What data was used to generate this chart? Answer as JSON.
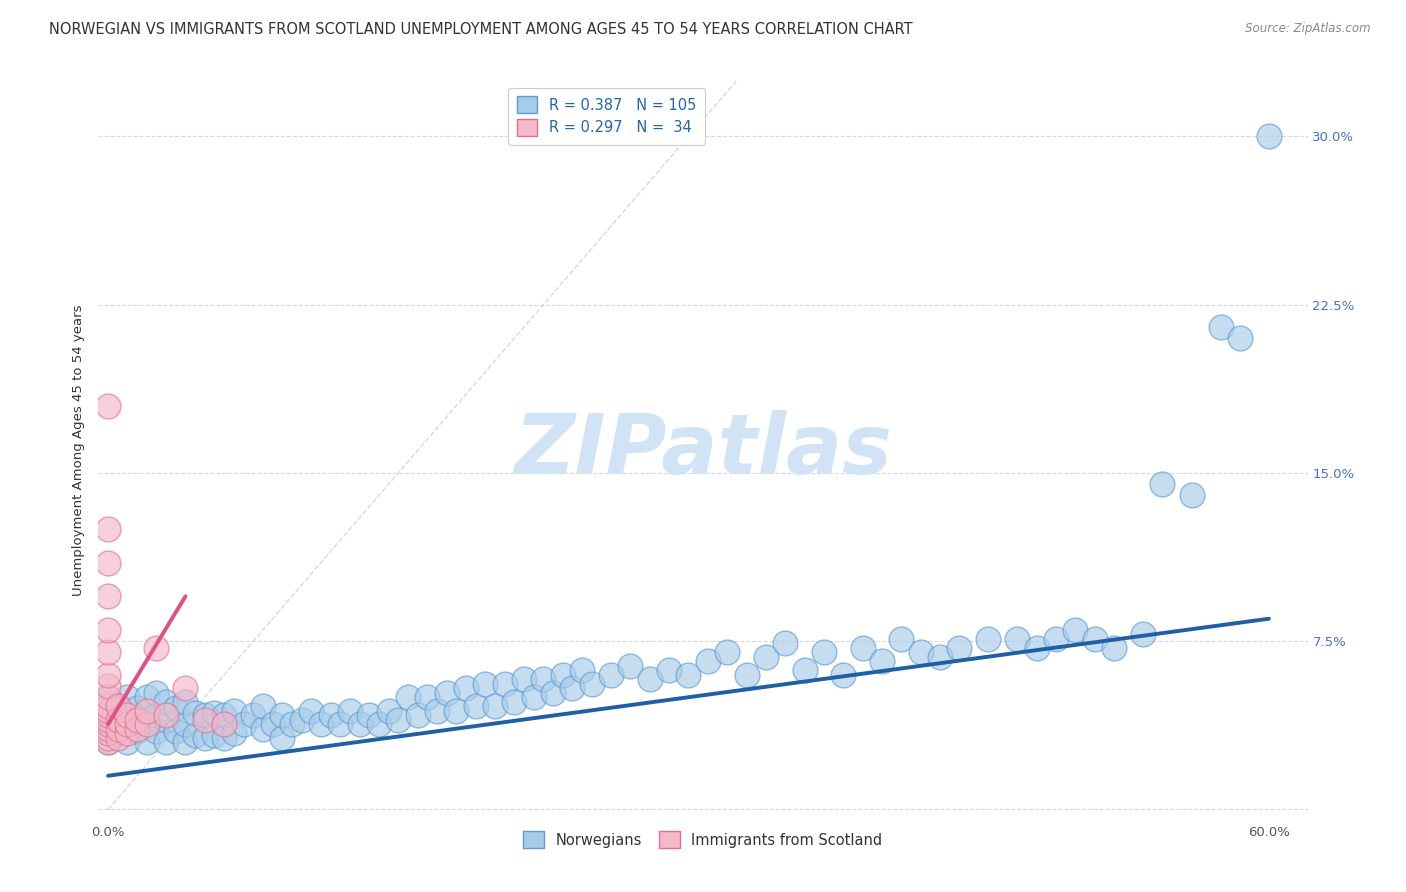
{
  "title": "NORWEGIAN VS IMMIGRANTS FROM SCOTLAND UNEMPLOYMENT AMONG AGES 45 TO 54 YEARS CORRELATION CHART",
  "source": "Source: ZipAtlas.com",
  "ylabel": "Unemployment Among Ages 45 to 54 years",
  "xlim": [
    -0.005,
    0.62
  ],
  "ylim": [
    -0.005,
    0.325
  ],
  "xticks": [
    0.0,
    0.1,
    0.2,
    0.3,
    0.4,
    0.5,
    0.6
  ],
  "yticks": [
    0.0,
    0.075,
    0.15,
    0.225,
    0.3
  ],
  "right_ytick_labels": [
    "",
    "7.5%",
    "15.0%",
    "22.5%",
    "30.0%"
  ],
  "xtick_labels": [
    "0.0%",
    "",
    "",
    "",
    "",
    "",
    "60.0%"
  ],
  "legend_label1": "Norwegians",
  "legend_label2": "Immigrants from Scotland",
  "blue_color": "#a8cce8",
  "pink_color": "#f4b8c8",
  "blue_edge_color": "#5b9bd5",
  "pink_edge_color": "#e07090",
  "blue_line_color": "#1f5fa6",
  "pink_line_color": "#e05080",
  "diag_line_color": "#c0c0c0",
  "watermark_color": "#d0e4f5",
  "grid_color": "#d0d0d0",
  "background_color": "#ffffff",
  "title_color": "#333333",
  "source_color": "#888888",
  "ylabel_color": "#333333",
  "tick_color": "#4472c4",
  "legend_text_color": "#2166ac",
  "bottom_legend_color": "#333333",
  "title_fontsize": 10.5,
  "axis_label_fontsize": 9.5,
  "tick_fontsize": 9.5,
  "legend_fontsize": 10.5,
  "watermark_fontsize": 60,
  "blue_dots_x": [
    0.0,
    0.0,
    0.0,
    0.005,
    0.005,
    0.01,
    0.01,
    0.01,
    0.015,
    0.015,
    0.02,
    0.02,
    0.02,
    0.025,
    0.025,
    0.025,
    0.03,
    0.03,
    0.03,
    0.035,
    0.035,
    0.04,
    0.04,
    0.04,
    0.045,
    0.045,
    0.05,
    0.05,
    0.055,
    0.055,
    0.06,
    0.06,
    0.065,
    0.065,
    0.07,
    0.075,
    0.08,
    0.08,
    0.085,
    0.09,
    0.09,
    0.095,
    0.1,
    0.105,
    0.11,
    0.115,
    0.12,
    0.125,
    0.13,
    0.135,
    0.14,
    0.145,
    0.15,
    0.155,
    0.16,
    0.165,
    0.17,
    0.175,
    0.18,
    0.185,
    0.19,
    0.195,
    0.2,
    0.205,
    0.21,
    0.215,
    0.22,
    0.225,
    0.23,
    0.235,
    0.24,
    0.245,
    0.25,
    0.26,
    0.27,
    0.28,
    0.29,
    0.3,
    0.31,
    0.32,
    0.33,
    0.34,
    0.35,
    0.36,
    0.37,
    0.38,
    0.39,
    0.4,
    0.41,
    0.42,
    0.43,
    0.44,
    0.455,
    0.47,
    0.48,
    0.49,
    0.5,
    0.51,
    0.52,
    0.535,
    0.545,
    0.56,
    0.575,
    0.585,
    0.6
  ],
  "blue_dots_y": [
    0.03,
    0.04,
    0.05,
    0.035,
    0.045,
    0.03,
    0.04,
    0.05,
    0.035,
    0.045,
    0.03,
    0.04,
    0.05,
    0.035,
    0.042,
    0.052,
    0.03,
    0.04,
    0.048,
    0.035,
    0.045,
    0.03,
    0.038,
    0.048,
    0.033,
    0.043,
    0.032,
    0.042,
    0.033,
    0.043,
    0.032,
    0.042,
    0.034,
    0.044,
    0.038,
    0.042,
    0.036,
    0.046,
    0.038,
    0.032,
    0.042,
    0.038,
    0.04,
    0.044,
    0.038,
    0.042,
    0.038,
    0.044,
    0.038,
    0.042,
    0.038,
    0.044,
    0.04,
    0.05,
    0.042,
    0.05,
    0.044,
    0.052,
    0.044,
    0.054,
    0.046,
    0.056,
    0.046,
    0.056,
    0.048,
    0.058,
    0.05,
    0.058,
    0.052,
    0.06,
    0.054,
    0.062,
    0.056,
    0.06,
    0.064,
    0.058,
    0.062,
    0.06,
    0.066,
    0.07,
    0.06,
    0.068,
    0.074,
    0.062,
    0.07,
    0.06,
    0.072,
    0.066,
    0.076,
    0.07,
    0.068,
    0.072,
    0.076,
    0.076,
    0.072,
    0.076,
    0.08,
    0.076,
    0.072,
    0.078,
    0.145,
    0.14,
    0.215,
    0.21,
    0.3
  ],
  "pink_dots_x": [
    0.0,
    0.0,
    0.0,
    0.0,
    0.0,
    0.0,
    0.0,
    0.0,
    0.0,
    0.0,
    0.0,
    0.0,
    0.0,
    0.0,
    0.0,
    0.0,
    0.0,
    0.0,
    0.005,
    0.005,
    0.005,
    0.005,
    0.01,
    0.01,
    0.01,
    0.015,
    0.015,
    0.02,
    0.02,
    0.025,
    0.03,
    0.04,
    0.05,
    0.06
  ],
  "pink_dots_y": [
    0.03,
    0.032,
    0.034,
    0.036,
    0.038,
    0.04,
    0.042,
    0.044,
    0.046,
    0.05,
    0.055,
    0.06,
    0.07,
    0.08,
    0.095,
    0.11,
    0.125,
    0.18,
    0.032,
    0.036,
    0.04,
    0.046,
    0.034,
    0.038,
    0.042,
    0.036,
    0.04,
    0.038,
    0.044,
    0.072,
    0.042,
    0.054,
    0.04,
    0.038
  ],
  "blue_line_x": [
    0.0,
    0.6
  ],
  "blue_line_y": [
    0.015,
    0.085
  ],
  "pink_line_x": [
    0.0,
    0.04
  ],
  "pink_line_y": [
    0.038,
    0.095
  ],
  "diag_line_x": [
    0.0,
    0.325
  ],
  "diag_line_y": [
    0.0,
    0.325
  ]
}
